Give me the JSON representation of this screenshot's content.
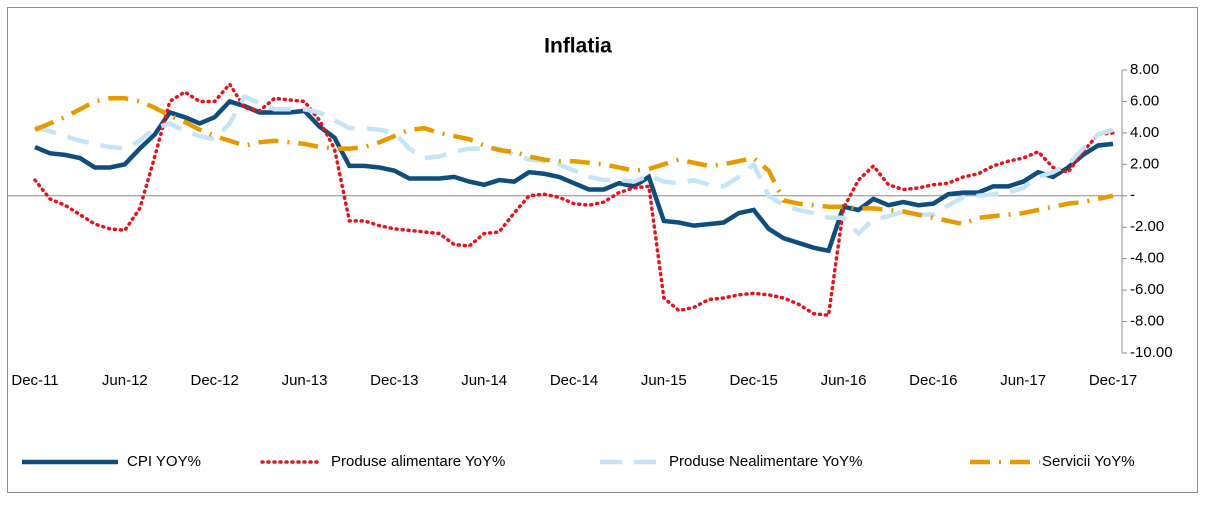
{
  "chart_data": {
    "type": "line",
    "title": "Inflatia",
    "categories": [
      "Dec-11",
      null,
      null,
      null,
      null,
      null,
      "Jun-12",
      null,
      null,
      null,
      null,
      null,
      "Dec-12",
      null,
      null,
      null,
      null,
      null,
      "Jun-13",
      null,
      null,
      null,
      null,
      null,
      "Dec-13",
      null,
      null,
      null,
      null,
      null,
      "Jun-14",
      null,
      null,
      null,
      null,
      null,
      "Dec-14",
      null,
      null,
      null,
      null,
      null,
      "Jun-15",
      null,
      null,
      null,
      null,
      null,
      "Dec-15",
      null,
      null,
      null,
      null,
      null,
      "Jun-16",
      null,
      null,
      null,
      null,
      null,
      "Dec-16",
      null,
      null,
      null,
      null,
      null,
      "Jun-17",
      null,
      null,
      null,
      null,
      null,
      "Dec-17"
    ],
    "ylim": [
      -10,
      8
    ],
    "yticks": [
      {
        "value": 8,
        "label": "8.00"
      },
      {
        "value": 6,
        "label": "6.00"
      },
      {
        "value": 4,
        "label": "4.00"
      },
      {
        "value": 2,
        "label": "2.00"
      },
      {
        "value": 0,
        "label": "-"
      },
      {
        "value": -2,
        "label": "-2.00"
      },
      {
        "value": -4,
        "label": "-4.00"
      },
      {
        "value": -6,
        "label": "-6.00"
      },
      {
        "value": -8,
        "label": "-8.00"
      },
      {
        "value": -10,
        "label": "-10.00"
      }
    ],
    "legend": "bottom",
    "series": [
      {
        "name": "CPI YOY%",
        "color": "#0e4d7c",
        "values": [
          3.1,
          2.7,
          2.6,
          2.4,
          1.8,
          1.8,
          2.0,
          3.0,
          3.9,
          5.3,
          5.0,
          4.6,
          5.0,
          6.0,
          5.7,
          5.3,
          5.3,
          5.3,
          5.4,
          4.4,
          3.7,
          1.9,
          1.9,
          1.8,
          1.6,
          1.1,
          1.1,
          1.1,
          1.2,
          0.9,
          0.7,
          1.0,
          0.9,
          1.5,
          1.4,
          1.2,
          0.8,
          0.4,
          0.4,
          0.8,
          0.6,
          1.2,
          -1.6,
          -1.7,
          -1.9,
          -1.8,
          -1.7,
          -1.1,
          -0.9,
          -2.1,
          -2.7,
          -3.0,
          -3.3,
          -3.5,
          -0.7,
          -0.9,
          -0.2,
          -0.6,
          -0.4,
          -0.6,
          -0.5,
          0.1,
          0.2,
          0.2,
          0.6,
          0.6,
          0.9,
          1.5,
          1.2,
          1.8,
          2.6,
          3.2,
          3.3
        ]
      },
      {
        "name": "Produse alimentare YoY%",
        "color": "#e3141c",
        "values": [
          1.0,
          -0.2,
          -0.6,
          -1.2,
          -1.8,
          -2.1,
          -2.2,
          -0.8,
          2.5,
          6.0,
          6.6,
          6.0,
          6.0,
          7.1,
          5.6,
          5.4,
          6.2,
          6.1,
          6.0,
          4.8,
          3.0,
          -1.6,
          -1.6,
          -1.9,
          -2.1,
          -2.2,
          -2.3,
          -2.4,
          -3.1,
          -3.2,
          -2.4,
          -2.3,
          -1.1,
          0.0,
          0.1,
          -0.1,
          -0.5,
          -0.6,
          -0.4,
          0.2,
          0.5,
          0.6,
          -6.5,
          -7.3,
          -7.1,
          -6.6,
          -6.5,
          -6.3,
          -6.2,
          -6.3,
          -6.5,
          -6.9,
          -7.5,
          -7.6,
          -0.8,
          1.0,
          1.9,
          0.7,
          0.4,
          0.5,
          0.7,
          0.8,
          1.2,
          1.4,
          1.9,
          2.2,
          2.4,
          2.8,
          1.8,
          1.5,
          2.8,
          3.9,
          4.0
        ]
      },
      {
        "name": "Produse Nealimentare YoY%",
        "color": "#c6e4f7",
        "values": [
          4.4,
          4.1,
          3.8,
          3.5,
          3.3,
          3.1,
          3.0,
          3.5,
          4.3,
          4.6,
          4.1,
          3.8,
          3.6,
          4.6,
          6.3,
          5.9,
          5.5,
          5.5,
          5.5,
          5.3,
          4.8,
          4.3,
          4.3,
          4.2,
          4.0,
          3.0,
          2.4,
          2.5,
          2.8,
          3.0,
          3.0,
          3.0,
          2.6,
          2.3,
          2.2,
          2.0,
          1.6,
          1.2,
          1.0,
          1.0,
          0.9,
          1.3,
          0.9,
          0.8,
          1.0,
          0.7,
          0.6,
          1.2,
          2.0,
          0.0,
          -0.6,
          -0.9,
          -1.1,
          -1.4,
          -1.4,
          -2.4,
          -1.5,
          -1.3,
          -1.0,
          -1.2,
          -1.2,
          -0.6,
          -0.1,
          0.0,
          0.1,
          0.2,
          0.5,
          1.2,
          1.5,
          2.0,
          3.0,
          3.9,
          4.2
        ]
      },
      {
        "name": "Servicii YoY%",
        "color": "#e59a00",
        "values": [
          4.2,
          4.6,
          5.0,
          5.5,
          6.0,
          6.2,
          6.2,
          6.0,
          5.6,
          5.1,
          4.7,
          4.2,
          3.8,
          3.5,
          3.2,
          3.4,
          3.5,
          3.4,
          3.3,
          3.1,
          3.0,
          3.0,
          3.1,
          3.4,
          3.8,
          4.2,
          4.3,
          4.0,
          3.8,
          3.6,
          3.2,
          2.9,
          2.8,
          2.5,
          2.3,
          2.2,
          2.2,
          2.1,
          2.0,
          1.8,
          1.6,
          1.7,
          2.0,
          2.3,
          2.1,
          1.9,
          2.0,
          2.2,
          2.4,
          1.6,
          -0.3,
          -0.5,
          -0.6,
          -0.7,
          -0.7,
          -0.8,
          -0.8,
          -0.9,
          -1.0,
          -1.2,
          -1.4,
          -1.6,
          -1.8,
          -1.4,
          -1.3,
          -1.2,
          -1.1,
          -0.9,
          -0.7,
          -0.5,
          -0.4,
          -0.2,
          0.0
        ]
      }
    ]
  }
}
